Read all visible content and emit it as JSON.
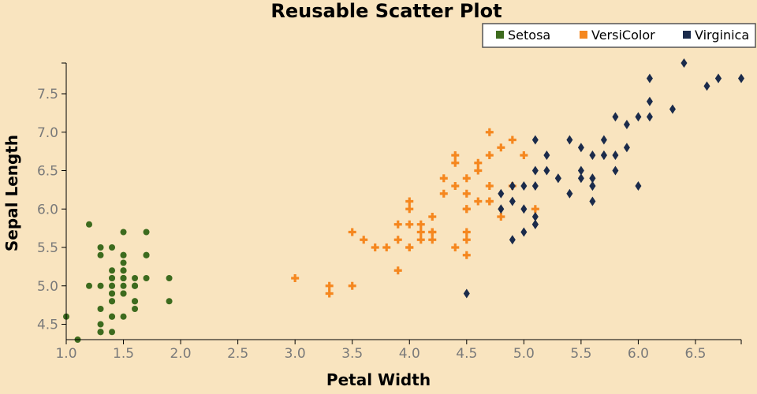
{
  "chart_data": {
    "type": "scatter",
    "title": "Reusable Scatter Plot",
    "xlabel": "Petal Width",
    "ylabel": "Sepal Length",
    "xlim": [
      1.0,
      6.9
    ],
    "ylim": [
      4.3,
      7.9
    ],
    "xticks": [
      1.0,
      1.5,
      2.0,
      2.5,
      3.0,
      3.5,
      4.0,
      4.5,
      5.0,
      5.5,
      6.0,
      6.5
    ],
    "yticks": [
      4.5,
      5.0,
      5.5,
      6.0,
      6.5,
      7.0,
      7.5
    ],
    "grid": false,
    "legend_position": "top-right",
    "series": [
      {
        "name": "Setosa",
        "color": "#3d6b1e",
        "marker": "circle",
        "points": [
          [
            1.4,
            5.1
          ],
          [
            1.4,
            4.9
          ],
          [
            1.3,
            4.7
          ],
          [
            1.5,
            4.6
          ],
          [
            1.4,
            5.0
          ],
          [
            1.7,
            5.4
          ],
          [
            1.4,
            4.6
          ],
          [
            1.5,
            5.0
          ],
          [
            1.4,
            4.4
          ],
          [
            1.5,
            4.9
          ],
          [
            1.5,
            5.4
          ],
          [
            1.6,
            4.8
          ],
          [
            1.4,
            4.8
          ],
          [
            1.1,
            4.3
          ],
          [
            1.2,
            5.8
          ],
          [
            1.5,
            5.7
          ],
          [
            1.3,
            5.4
          ],
          [
            1.4,
            5.1
          ],
          [
            1.7,
            5.7
          ],
          [
            1.5,
            5.1
          ],
          [
            1.7,
            5.4
          ],
          [
            1.5,
            5.1
          ],
          [
            1.0,
            4.6
          ],
          [
            1.7,
            5.1
          ],
          [
            1.9,
            4.8
          ],
          [
            1.6,
            5.0
          ],
          [
            1.6,
            5.0
          ],
          [
            1.5,
            5.2
          ],
          [
            1.4,
            5.2
          ],
          [
            1.6,
            4.7
          ],
          [
            1.6,
            4.8
          ],
          [
            1.5,
            5.4
          ],
          [
            1.5,
            5.2
          ],
          [
            1.4,
            5.5
          ],
          [
            1.5,
            4.9
          ],
          [
            1.2,
            5.0
          ],
          [
            1.3,
            5.5
          ],
          [
            1.4,
            4.9
          ],
          [
            1.3,
            4.4
          ],
          [
            1.5,
            5.1
          ],
          [
            1.3,
            5.0
          ],
          [
            1.3,
            4.5
          ],
          [
            1.3,
            4.4
          ],
          [
            1.6,
            5.0
          ],
          [
            1.9,
            5.1
          ],
          [
            1.4,
            4.8
          ],
          [
            1.6,
            5.1
          ],
          [
            1.4,
            4.6
          ],
          [
            1.5,
            5.3
          ],
          [
            1.4,
            5.0
          ]
        ]
      },
      {
        "name": "VersiColor",
        "color": "#f5871f",
        "marker": "cross",
        "points": [
          [
            4.7,
            7.0
          ],
          [
            4.5,
            6.4
          ],
          [
            4.9,
            6.9
          ],
          [
            4.0,
            5.5
          ],
          [
            4.6,
            6.5
          ],
          [
            4.5,
            5.7
          ],
          [
            4.7,
            6.3
          ],
          [
            3.3,
            4.9
          ],
          [
            4.6,
            6.6
          ],
          [
            3.9,
            5.2
          ],
          [
            3.5,
            5.0
          ],
          [
            4.2,
            5.9
          ],
          [
            4.0,
            6.0
          ],
          [
            4.7,
            6.1
          ],
          [
            3.6,
            5.6
          ],
          [
            4.4,
            6.7
          ],
          [
            4.5,
            5.6
          ],
          [
            4.1,
            5.8
          ],
          [
            4.5,
            6.2
          ],
          [
            3.9,
            5.6
          ],
          [
            4.8,
            5.9
          ],
          [
            4.0,
            6.1
          ],
          [
            4.9,
            6.3
          ],
          [
            4.7,
            6.1
          ],
          [
            4.3,
            6.4
          ],
          [
            4.4,
            6.6
          ],
          [
            4.8,
            6.8
          ],
          [
            5.0,
            6.7
          ],
          [
            4.5,
            6.0
          ],
          [
            3.5,
            5.7
          ],
          [
            3.8,
            5.5
          ],
          [
            3.7,
            5.5
          ],
          [
            3.9,
            5.8
          ],
          [
            5.1,
            6.0
          ],
          [
            4.5,
            5.4
          ],
          [
            4.5,
            6.0
          ],
          [
            4.7,
            6.7
          ],
          [
            4.4,
            6.3
          ],
          [
            4.1,
            5.6
          ],
          [
            4.0,
            5.5
          ],
          [
            4.4,
            5.5
          ],
          [
            4.6,
            6.1
          ],
          [
            4.0,
            5.8
          ],
          [
            3.3,
            5.0
          ],
          [
            4.2,
            5.6
          ],
          [
            4.2,
            5.7
          ],
          [
            4.2,
            5.7
          ],
          [
            4.3,
            6.2
          ],
          [
            3.0,
            5.1
          ],
          [
            4.1,
            5.7
          ]
        ]
      },
      {
        "name": "Virginica",
        "color": "#1b2b4b",
        "marker": "diamond",
        "points": [
          [
            6.0,
            6.3
          ],
          [
            5.1,
            5.8
          ],
          [
            5.9,
            7.1
          ],
          [
            5.6,
            6.3
          ],
          [
            5.8,
            6.5
          ],
          [
            6.6,
            7.6
          ],
          [
            4.5,
            4.9
          ],
          [
            6.3,
            7.3
          ],
          [
            5.8,
            6.7
          ],
          [
            6.1,
            7.2
          ],
          [
            5.1,
            6.5
          ],
          [
            5.3,
            6.4
          ],
          [
            5.5,
            6.8
          ],
          [
            5.0,
            5.7
          ],
          [
            5.1,
            5.8
          ],
          [
            5.3,
            6.4
          ],
          [
            5.5,
            6.5
          ],
          [
            6.7,
            7.7
          ],
          [
            6.9,
            7.7
          ],
          [
            5.0,
            6.0
          ],
          [
            5.7,
            6.9
          ],
          [
            4.9,
            5.6
          ],
          [
            6.7,
            7.7
          ],
          [
            4.9,
            6.3
          ],
          [
            5.7,
            6.7
          ],
          [
            6.0,
            7.2
          ],
          [
            4.8,
            6.2
          ],
          [
            4.9,
            6.1
          ],
          [
            5.6,
            6.4
          ],
          [
            5.8,
            7.2
          ],
          [
            6.1,
            7.4
          ],
          [
            6.4,
            7.9
          ],
          [
            5.6,
            6.4
          ],
          [
            5.1,
            6.3
          ],
          [
            5.6,
            6.1
          ],
          [
            6.1,
            7.7
          ],
          [
            5.6,
            6.3
          ],
          [
            5.5,
            6.4
          ],
          [
            4.8,
            6.0
          ],
          [
            5.4,
            6.9
          ],
          [
            5.6,
            6.7
          ],
          [
            5.1,
            6.9
          ],
          [
            5.1,
            5.8
          ],
          [
            5.9,
            6.8
          ],
          [
            5.7,
            6.7
          ],
          [
            5.2,
            6.7
          ],
          [
            5.0,
            6.3
          ],
          [
            5.2,
            6.5
          ],
          [
            5.4,
            6.2
          ],
          [
            5.1,
            5.9
          ]
        ]
      }
    ]
  }
}
